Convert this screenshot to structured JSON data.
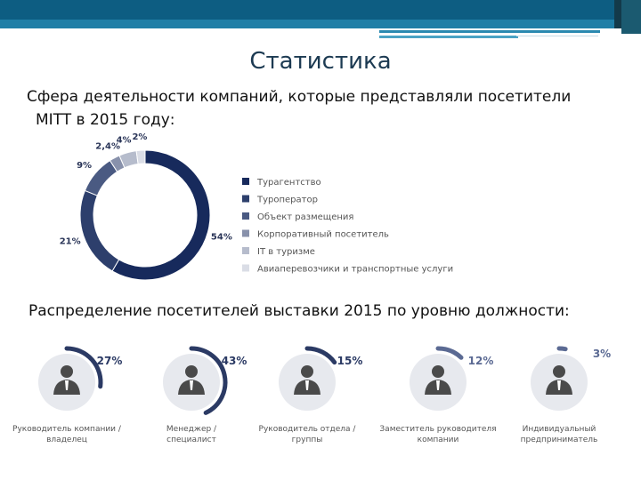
{
  "title": "Статистика",
  "subtitle_line1": "Сфера деятельности компаний, которые представляли посетители",
  "subtitle_line2": "MITT в 2015 году:",
  "heading2": "Распределение посетителей выставки 2015 по уровню должности:",
  "colors": {
    "band": "#0d5d82",
    "s1": "#172a5c",
    "s2": "#2d3f6c",
    "s3": "#4a5a82",
    "s4": "#8891ab",
    "s5": "#b6bccc",
    "s6": "#dadde6",
    "ring_track": "#e6e8ee",
    "gauge_arc": "#2b3a64",
    "gauge_arc_light": "#5b6a93",
    "circle_bg": "#e7e9ee",
    "person": "#4a4a4a"
  },
  "chart_data": [
    {
      "type": "pie",
      "variant": "donut",
      "title": "",
      "legend_position": "right",
      "series": [
        {
          "name": "Турагентство",
          "value": 54,
          "label": "54%"
        },
        {
          "name": "Туроператор",
          "value": 21,
          "label": "21%"
        },
        {
          "name": "Объект размещения",
          "value": 9,
          "label": "9%"
        },
        {
          "name": "Корпоративный посетитель",
          "value": 2.4,
          "label": "2,4%"
        },
        {
          "name": "IT в туризме",
          "value": 4,
          "label": "4%"
        },
        {
          "name": "Авиаперевозчики и транспортные услуги",
          "value": 2,
          "label": "2%"
        }
      ]
    },
    {
      "type": "gauge",
      "series": [
        {
          "name": "Руководитель компании /",
          "name2": "владелец",
          "value": 27,
          "label": "27%"
        },
        {
          "name": "Менеджер /",
          "name2": "специалист",
          "value": 43,
          "label": "43%"
        },
        {
          "name": "Руководитель отдела /",
          "name2": "группы",
          "value": 15,
          "label": "15%"
        },
        {
          "name": "Заместитель руководителя",
          "name2": "компании",
          "value": 12,
          "label": "12%"
        },
        {
          "name": "Индивидуальный",
          "name2": "предприниматель",
          "value": 3,
          "label": "3%"
        }
      ]
    }
  ]
}
